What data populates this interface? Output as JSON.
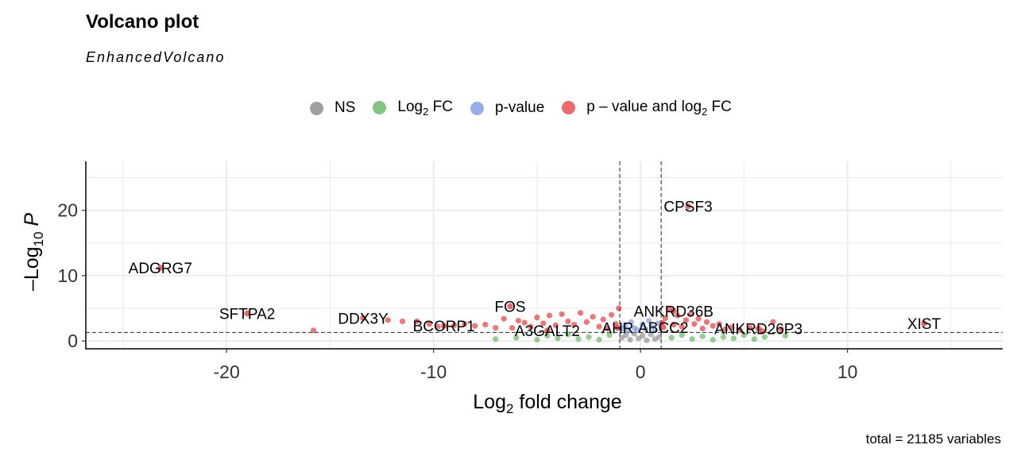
{
  "title": "Volcano plot",
  "subtitle": "EnhancedVolcano",
  "caption": "total = 21185 variables",
  "legend": [
    {
      "label": "NS",
      "sub": "",
      "suffix": "",
      "color": "#808080"
    },
    {
      "label": "Log",
      "sub": "2",
      "suffix": " FC",
      "color": "#4DAF4A"
    },
    {
      "label": "p-value",
      "sub": "",
      "suffix": "",
      "color": "#6A8CE0"
    },
    {
      "label": "p – value and log",
      "sub": "2",
      "suffix": " FC",
      "color": "#E41A1C"
    }
  ],
  "chart_data": {
    "type": "scatter",
    "title": "Volcano plot",
    "subtitle": "EnhancedVolcano",
    "xlabel": "Log2 fold change",
    "ylabel": "–Log10 P",
    "xlim": [
      -26.8,
      17.5
    ],
    "ylim": [
      -1.2,
      27.5
    ],
    "xticks": [
      -20,
      -10,
      0,
      10
    ],
    "yticks": [
      0,
      10,
      20
    ],
    "fc_cutoff": 1,
    "p_cutoff_log10": 1.3,
    "grid": true,
    "legend_position": "top",
    "colors": {
      "NS": "#808080",
      "Log2 FC": "#4DAF4A",
      "p-value": "#6A8CE0",
      "p-value and log2 FC": "#E41A1C"
    },
    "labeled_points": [
      {
        "gene": "CPSF3",
        "x": 2.3,
        "y": 20.6
      },
      {
        "gene": "ADGRG7",
        "x": -23.2,
        "y": 11.2
      },
      {
        "gene": "XIST",
        "x": 13.7,
        "y": 2.7
      },
      {
        "gene": "SFTPA2",
        "x": -19.0,
        "y": 4.2
      },
      {
        "gene": "DDX3Y",
        "x": -13.4,
        "y": 3.5
      },
      {
        "gene": "FOS",
        "x": -6.3,
        "y": 5.3
      },
      {
        "gene": "ANKRD36B",
        "x": 1.6,
        "y": 4.6
      },
      {
        "gene": "BCORP1",
        "x": -9.5,
        "y": 2.3
      },
      {
        "gene": "A3GALT2",
        "x": -4.5,
        "y": 1.6
      },
      {
        "gene": "AHR",
        "x": -1.1,
        "y": 2.0
      },
      {
        "gene": "ABCC2",
        "x": 1.1,
        "y": 2.1
      },
      {
        "gene": "ANKRD26P3",
        "x": 5.7,
        "y": 1.9
      }
    ],
    "points": {
      "red": [
        [
          -15.8,
          1.6
        ],
        [
          -12.2,
          3.2
        ],
        [
          -11.5,
          3.0
        ],
        [
          -10.8,
          3.0
        ],
        [
          -10.2,
          2.6
        ],
        [
          -9.8,
          2.2
        ],
        [
          -9.0,
          2.4
        ],
        [
          -8.5,
          2.6
        ],
        [
          -8.0,
          2.3
        ],
        [
          -7.5,
          2.5
        ],
        [
          -7.0,
          2.0
        ],
        [
          -6.6,
          3.4
        ],
        [
          -6.2,
          2.0
        ],
        [
          -5.9,
          3.1
        ],
        [
          -5.6,
          2.8
        ],
        [
          -5.3,
          2.2
        ],
        [
          -5.0,
          3.6
        ],
        [
          -4.7,
          2.7
        ],
        [
          -4.4,
          3.9
        ],
        [
          -4.1,
          2.4
        ],
        [
          -3.8,
          4.1
        ],
        [
          -3.5,
          3.0
        ],
        [
          -3.2,
          2.5
        ],
        [
          -2.9,
          4.3
        ],
        [
          -2.6,
          2.9
        ],
        [
          -2.3,
          3.7
        ],
        [
          -2.0,
          2.2
        ],
        [
          -1.8,
          3.3
        ],
        [
          -1.6,
          1.9
        ],
        [
          -1.4,
          4.0
        ],
        [
          -1.2,
          2.6
        ],
        [
          -1.05,
          5.0
        ],
        [
          1.05,
          2.8
        ],
        [
          1.2,
          3.5
        ],
        [
          1.4,
          4.8
        ],
        [
          1.6,
          2.5
        ],
        [
          1.8,
          3.9
        ],
        [
          2.0,
          2.2
        ],
        [
          2.2,
          3.2
        ],
        [
          2.4,
          4.1
        ],
        [
          2.6,
          2.6
        ],
        [
          2.8,
          3.4
        ],
        [
          3.0,
          1.9
        ],
        [
          3.2,
          2.9
        ],
        [
          3.5,
          2.3
        ],
        [
          3.8,
          2.6
        ],
        [
          4.1,
          1.8
        ],
        [
          4.4,
          2.1
        ],
        [
          4.8,
          1.7
        ],
        [
          5.3,
          2.0
        ],
        [
          5.9,
          1.5
        ],
        [
          6.4,
          2.9
        ],
        [
          6.8,
          1.8
        ]
      ],
      "blue": [
        [
          -0.9,
          1.9
        ],
        [
          -0.75,
          2.4
        ],
        [
          -0.6,
          1.6
        ],
        [
          -0.45,
          2.9
        ],
        [
          -0.3,
          2.0
        ],
        [
          -0.15,
          1.7
        ],
        [
          0.1,
          2.5
        ],
        [
          0.25,
          1.8
        ],
        [
          0.4,
          3.1
        ],
        [
          0.55,
          2.2
        ],
        [
          0.7,
          1.6
        ],
        [
          0.85,
          2.7
        ]
      ],
      "green": [
        [
          -7.0,
          0.3
        ],
        [
          -6.0,
          0.5
        ],
        [
          -5.0,
          0.2
        ],
        [
          -4.5,
          0.8
        ],
        [
          -4.0,
          0.4
        ],
        [
          -3.5,
          1.0
        ],
        [
          -3.0,
          0.3
        ],
        [
          -2.5,
          0.6
        ],
        [
          -2.0,
          0.2
        ],
        [
          -1.5,
          0.9
        ],
        [
          1.5,
          0.5
        ],
        [
          2.0,
          0.9
        ],
        [
          2.5,
          0.3
        ],
        [
          3.0,
          0.7
        ],
        [
          3.5,
          0.2
        ],
        [
          4.0,
          0.6
        ],
        [
          4.5,
          0.4
        ],
        [
          5.0,
          0.9
        ],
        [
          5.5,
          0.3
        ],
        [
          6.0,
          0.6
        ],
        [
          7.0,
          0.8
        ]
      ],
      "grey": [
        [
          -0.9,
          0.5
        ],
        [
          -0.7,
          0.9
        ],
        [
          -0.5,
          0.2
        ],
        [
          -0.3,
          1.1
        ],
        [
          -0.1,
          0.4
        ],
        [
          0.1,
          0.8
        ],
        [
          0.3,
          0.1
        ],
        [
          0.5,
          1.0
        ],
        [
          0.7,
          0.3
        ],
        [
          0.9,
          0.6
        ]
      ]
    }
  }
}
